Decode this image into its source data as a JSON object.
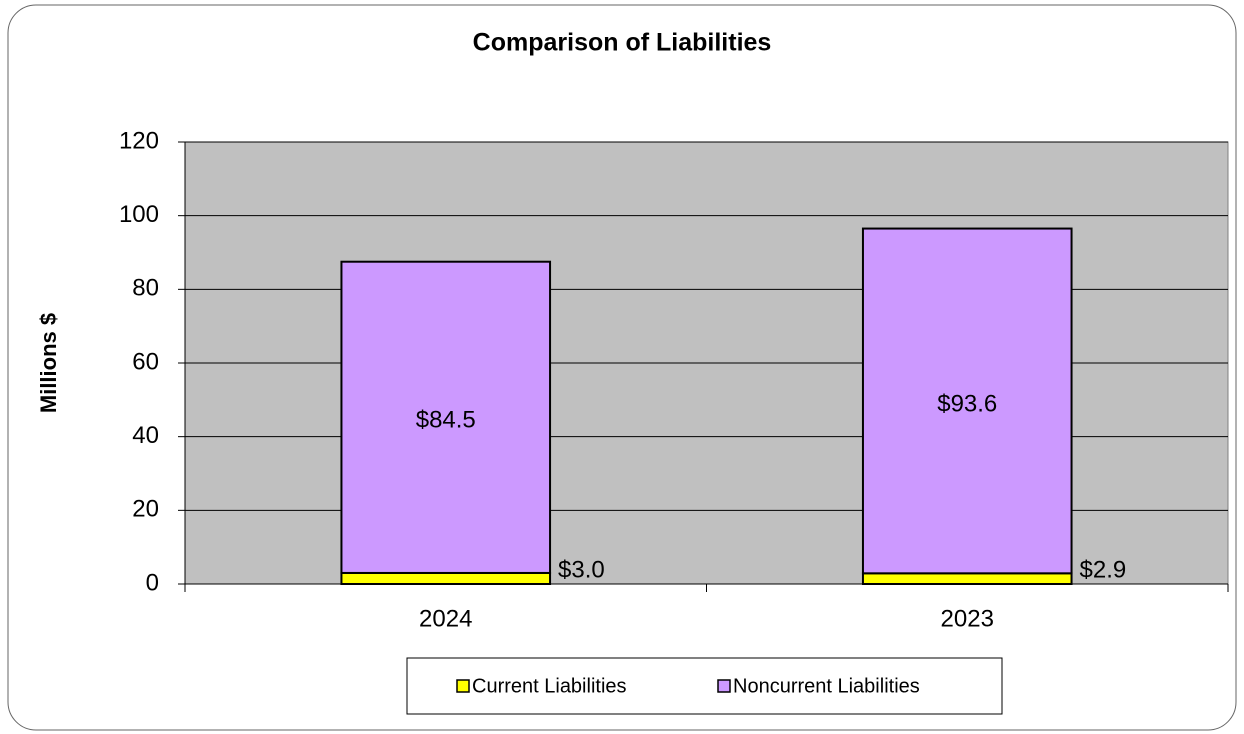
{
  "chart_data": {
    "type": "bar",
    "stacked": true,
    "title": "Comparison of Liabilities",
    "y_label": "Millions $",
    "categories": [
      "2024",
      "2023"
    ],
    "series": [
      {
        "name": "Current Liabilities",
        "color": "#ffff00",
        "values": [
          3.0,
          2.9
        ],
        "value_labels": [
          "$3.0",
          "$2.9"
        ]
      },
      {
        "name": "Noncurrent Liabilities",
        "color": "#cc99ff",
        "values": [
          84.5,
          93.6
        ],
        "value_labels": [
          "$84.5",
          "$93.6"
        ]
      }
    ],
    "ylim": [
      0,
      120
    ],
    "yticks": [
      0,
      20,
      40,
      60,
      80,
      100,
      120
    ],
    "grid": true,
    "legend": "bottom"
  }
}
